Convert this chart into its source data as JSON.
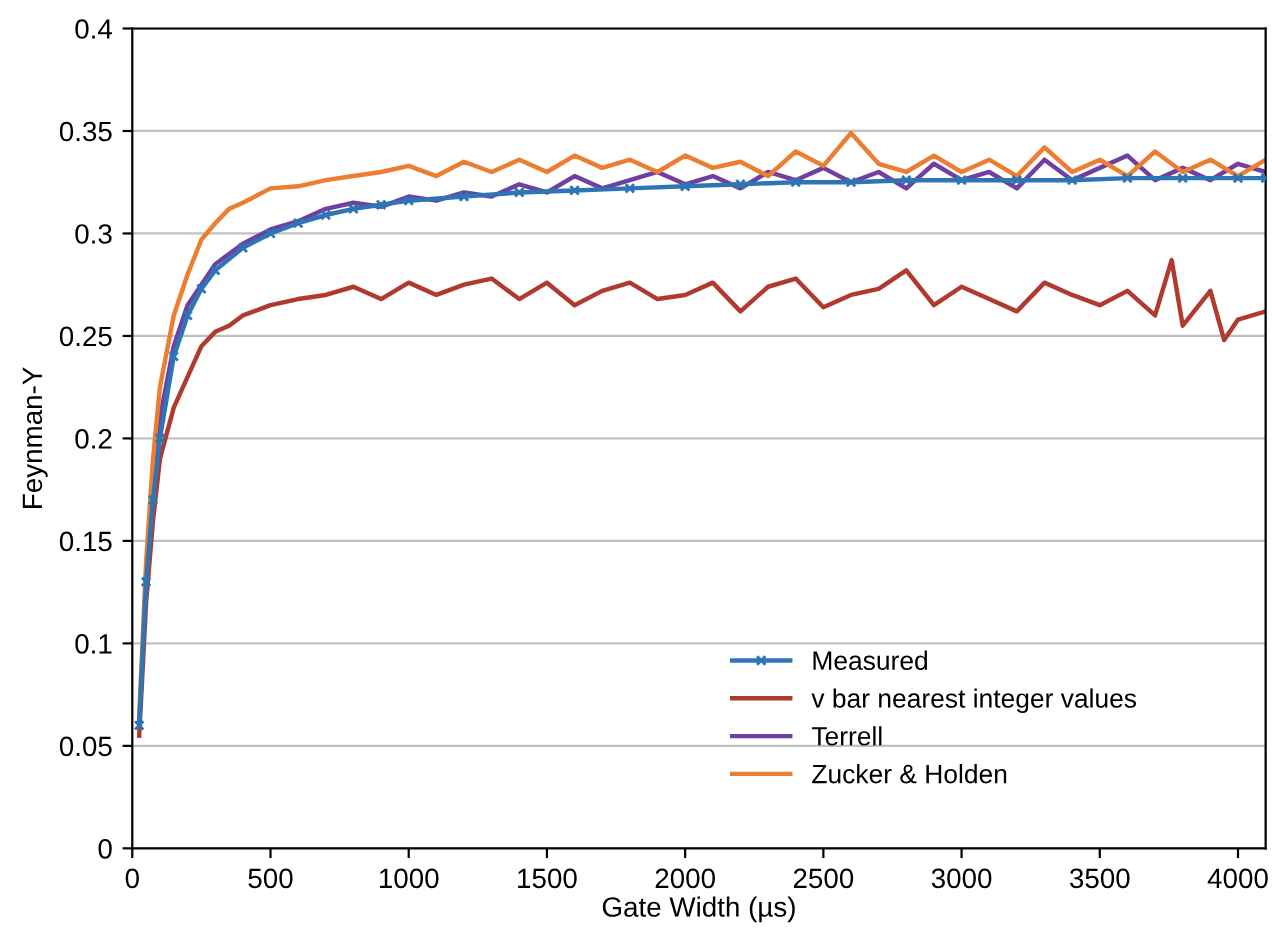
{
  "chart_data": {
    "type": "line",
    "xlabel": "Gate Width (µs)",
    "ylabel": "Feynman-Y",
    "xlim": [
      0,
      4100
    ],
    "ylim": [
      0,
      0.4
    ],
    "xticks": [
      0,
      500,
      1000,
      1500,
      2000,
      2500,
      3000,
      3500,
      4000
    ],
    "yticks": [
      0,
      0.05,
      0.1,
      0.15,
      0.2,
      0.25,
      0.3,
      0.35,
      0.4
    ],
    "grid": "y",
    "legend": "bottom right",
    "line_style": "solid",
    "marker": "none",
    "series": [
      {
        "name": "Measured",
        "color": "#2e75b6",
        "marker": "cross",
        "x": [
          25,
          50,
          75,
          100,
          150,
          200,
          250,
          300,
          400,
          500,
          600,
          700,
          800,
          900,
          1000,
          1200,
          1400,
          1600,
          1800,
          2000,
          2200,
          2400,
          2600,
          2800,
          3000,
          3200,
          3400,
          3600,
          3800,
          4000,
          4100
        ],
        "values": [
          0.06,
          0.13,
          0.17,
          0.2,
          0.24,
          0.26,
          0.273,
          0.282,
          0.293,
          0.3,
          0.305,
          0.309,
          0.312,
          0.314,
          0.316,
          0.318,
          0.32,
          0.321,
          0.322,
          0.323,
          0.324,
          0.325,
          0.325,
          0.326,
          0.326,
          0.326,
          0.326,
          0.327,
          0.327,
          0.327,
          0.327
        ]
      },
      {
        "name": "v bar nearest integer values",
        "color": "#b03a2e",
        "x": [
          25,
          50,
          75,
          100,
          150,
          200,
          250,
          300,
          350,
          400,
          500,
          600,
          700,
          800,
          900,
          1000,
          1100,
          1200,
          1300,
          1400,
          1500,
          1600,
          1700,
          1800,
          1900,
          2000,
          2100,
          2200,
          2300,
          2400,
          2500,
          2600,
          2700,
          2800,
          2900,
          3000,
          3100,
          3200,
          3300,
          3400,
          3500,
          3600,
          3700,
          3760,
          3800,
          3900,
          3950,
          4000,
          4100
        ],
        "values": [
          0.055,
          0.12,
          0.16,
          0.19,
          0.215,
          0.23,
          0.245,
          0.252,
          0.255,
          0.26,
          0.265,
          0.268,
          0.27,
          0.274,
          0.268,
          0.276,
          0.27,
          0.275,
          0.278,
          0.268,
          0.276,
          0.265,
          0.272,
          0.276,
          0.268,
          0.27,
          0.276,
          0.262,
          0.274,
          0.278,
          0.264,
          0.27,
          0.273,
          0.282,
          0.265,
          0.274,
          0.268,
          0.262,
          0.276,
          0.27,
          0.265,
          0.272,
          0.26,
          0.287,
          0.255,
          0.272,
          0.248,
          0.258,
          0.262
        ]
      },
      {
        "name": "Terrell",
        "color": "#7040a0",
        "x": [
          25,
          50,
          75,
          100,
          150,
          200,
          250,
          300,
          400,
          500,
          600,
          700,
          800,
          900,
          1000,
          1100,
          1200,
          1300,
          1400,
          1500,
          1600,
          1700,
          1800,
          1900,
          2000,
          2100,
          2200,
          2300,
          2400,
          2500,
          2600,
          2700,
          2800,
          2900,
          3000,
          3100,
          3200,
          3300,
          3400,
          3500,
          3600,
          3700,
          3800,
          3900,
          4000,
          4100
        ],
        "values": [
          0.06,
          0.13,
          0.18,
          0.21,
          0.245,
          0.265,
          0.275,
          0.285,
          0.295,
          0.302,
          0.306,
          0.312,
          0.315,
          0.313,
          0.318,
          0.316,
          0.32,
          0.318,
          0.324,
          0.32,
          0.328,
          0.322,
          0.326,
          0.33,
          0.324,
          0.328,
          0.322,
          0.33,
          0.326,
          0.332,
          0.325,
          0.33,
          0.322,
          0.334,
          0.326,
          0.33,
          0.322,
          0.336,
          0.326,
          0.332,
          0.338,
          0.326,
          0.332,
          0.326,
          0.334,
          0.33
        ]
      },
      {
        "name": "Zucker & Holden",
        "color": "#ed7d31",
        "x": [
          25,
          50,
          75,
          100,
          150,
          200,
          250,
          300,
          350,
          400,
          500,
          600,
          700,
          800,
          900,
          1000,
          1100,
          1200,
          1300,
          1400,
          1500,
          1600,
          1700,
          1800,
          1900,
          2000,
          2100,
          2200,
          2300,
          2400,
          2500,
          2600,
          2700,
          2800,
          2900,
          3000,
          3100,
          3200,
          3300,
          3400,
          3500,
          3600,
          3700,
          3800,
          3900,
          4000,
          4100
        ],
        "values": [
          0.065,
          0.14,
          0.19,
          0.225,
          0.26,
          0.28,
          0.297,
          0.305,
          0.312,
          0.315,
          0.322,
          0.323,
          0.326,
          0.328,
          0.33,
          0.333,
          0.328,
          0.335,
          0.33,
          0.336,
          0.33,
          0.338,
          0.332,
          0.336,
          0.33,
          0.338,
          0.332,
          0.335,
          0.328,
          0.34,
          0.333,
          0.349,
          0.334,
          0.33,
          0.338,
          0.33,
          0.336,
          0.328,
          0.342,
          0.33,
          0.336,
          0.328,
          0.34,
          0.33,
          0.336,
          0.328,
          0.336
        ]
      }
    ]
  }
}
